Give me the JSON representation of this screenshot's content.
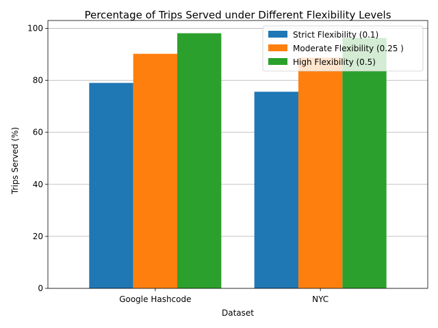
{
  "chart_data": {
    "type": "bar",
    "title": "Percentage of Trips Served under Different Flexibility Levels",
    "xlabel": "Dataset",
    "ylabel": "Trips Served (%)",
    "categories": [
      "Google Hashcode",
      "NYC"
    ],
    "series": [
      {
        "name": "Strict Flexibility (0.1)",
        "color": "#1f77b4",
        "values": [
          79.0,
          75.6
        ]
      },
      {
        "name": "Moderate Flexibility (0.25 )",
        "color": "#ff7f0e",
        "values": [
          90.2,
          88.7
        ]
      },
      {
        "name": "High Flexibility (0.5)",
        "color": "#2ca02c",
        "values": [
          98.1,
          96.3
        ]
      }
    ],
    "ylim": [
      0,
      103
    ],
    "yticks": [
      0,
      20,
      40,
      60,
      80,
      100
    ],
    "grid": "horizontal",
    "legend_position": "top-right"
  }
}
